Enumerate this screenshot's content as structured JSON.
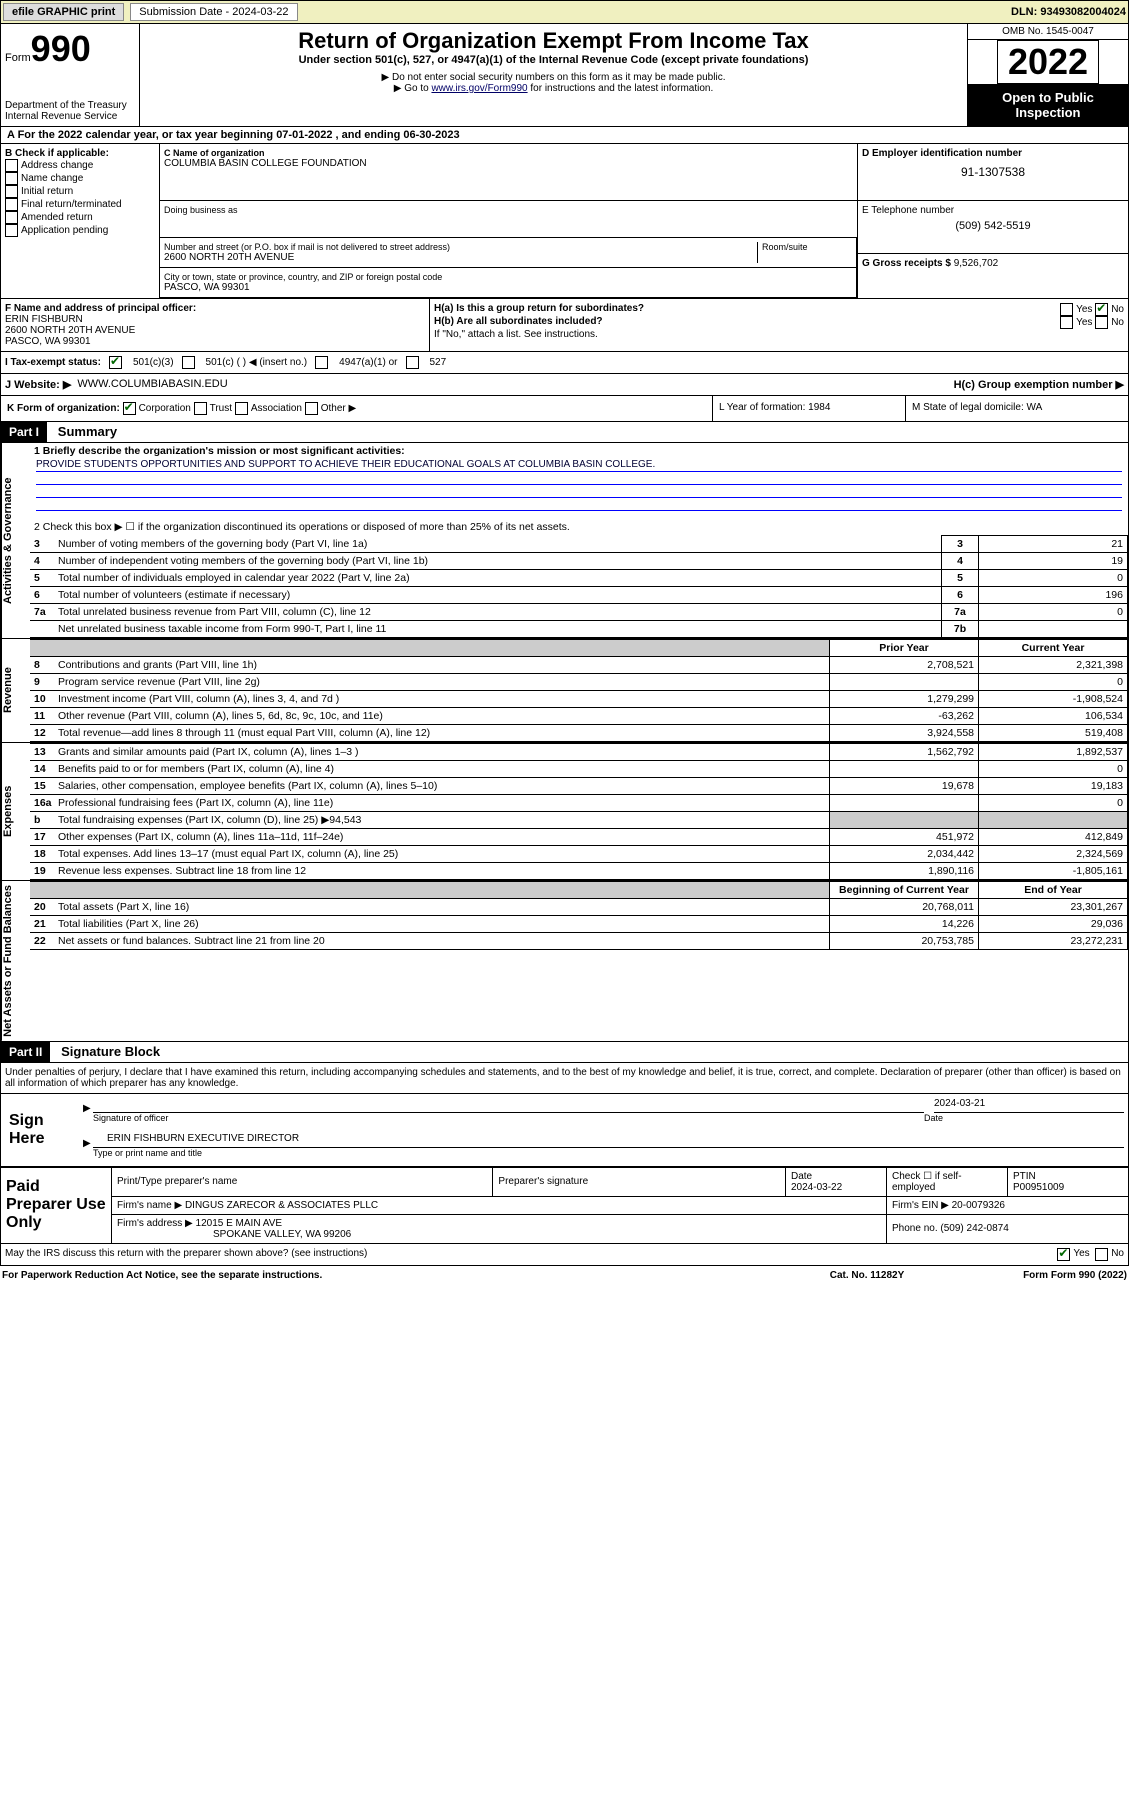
{
  "topbar": {
    "efile": "efile GRAPHIC print",
    "submission_label": "Submission Date - 2024-03-22",
    "dln": "DLN: 93493082004024"
  },
  "header": {
    "form_label": "Form",
    "form_no": "990",
    "dept": "Department of the Treasury",
    "irs": "Internal Revenue Service",
    "title": "Return of Organization Exempt From Income Tax",
    "subtitle": "Under section 501(c), 527, or 4947(a)(1) of the Internal Revenue Code (except private foundations)",
    "note1": "▶ Do not enter social security numbers on this form as it may be made public.",
    "note2_pre": "▶ Go to ",
    "note2_link": "www.irs.gov/Form990",
    "note2_post": " for instructions and the latest information.",
    "omb": "OMB No. 1545-0047",
    "year": "2022",
    "public": "Open to Public Inspection"
  },
  "rowA": "A For the 2022 calendar year, or tax year beginning 07-01-2022  , and ending 06-30-2023",
  "colB": {
    "hdr": "B Check if applicable:",
    "opts": [
      "Address change",
      "Name change",
      "Initial return",
      "Final return/terminated",
      "Amended return",
      "Application pending"
    ]
  },
  "colC": {
    "name_lbl": "C Name of organization",
    "name": "COLUMBIA BASIN COLLEGE FOUNDATION",
    "dba_lbl": "Doing business as",
    "street_lbl": "Number and street (or P.O. box if mail is not delivered to street address)",
    "room_lbl": "Room/suite",
    "street": "2600 NORTH 20TH AVENUE",
    "city_lbl": "City or town, state or province, country, and ZIP or foreign postal code",
    "city": "PASCO, WA  99301"
  },
  "colD": {
    "ein_lbl": "D Employer identification number",
    "ein": "91-1307538",
    "phone_lbl": "E Telephone number",
    "phone": "(509) 542-5519",
    "gross_lbl": "G Gross receipts $",
    "gross": "9,526,702"
  },
  "colF": {
    "lbl": "F Name and address of principal officer:",
    "name": "ERIN FISHBURN",
    "addr1": "2600 NORTH 20TH AVENUE",
    "addr2": "PASCO, WA  99301"
  },
  "colH": {
    "ha": "H(a)  Is this a group return for subordinates?",
    "ha_yes": "Yes",
    "ha_no": "No",
    "hb": "H(b)  Are all subordinates included?",
    "hb_note": "If \"No,\" attach a list. See instructions.",
    "hc": "H(c)  Group exemption number ▶"
  },
  "taxrow": {
    "lbl": "I   Tax-exempt status:",
    "o1": "501(c)(3)",
    "o2": "501(c) (  ) ◀ (insert no.)",
    "o3": "4947(a)(1) or",
    "o4": "527"
  },
  "web": {
    "lbl": "J   Website: ▶",
    "val": "WWW.COLUMBIABASIN.EDU"
  },
  "krow": {
    "k": "K Form of organization:",
    "k1": "Corporation",
    "k2": "Trust",
    "k3": "Association",
    "k4": "Other ▶",
    "l": "L Year of formation: 1984",
    "m": "M State of legal domicile: WA"
  },
  "part1": {
    "hdr": "Part I",
    "title": "Summary"
  },
  "sidelabels": {
    "ag": "Activities & Governance",
    "rev": "Revenue",
    "exp": "Expenses",
    "nab": "Net Assets or Fund Balances"
  },
  "mission": {
    "lbl": "1   Briefly describe the organization's mission or most significant activities:",
    "text": "PROVIDE STUDENTS OPPORTUNITIES AND SUPPORT TO ACHIEVE THEIR EDUCATIONAL GOALS AT COLUMBIA BASIN COLLEGE."
  },
  "line2": "2   Check this box ▶ ☐  if the organization discontinued its operations or disposed of more than 25% of its net assets.",
  "govlines": [
    {
      "n": "3",
      "t": "Number of voting members of the governing body (Part VI, line 1a)",
      "c": "3",
      "v": "21"
    },
    {
      "n": "4",
      "t": "Number of independent voting members of the governing body (Part VI, line 1b)",
      "c": "4",
      "v": "19"
    },
    {
      "n": "5",
      "t": "Total number of individuals employed in calendar year 2022 (Part V, line 2a)",
      "c": "5",
      "v": "0"
    },
    {
      "n": "6",
      "t": "Total number of volunteers (estimate if necessary)",
      "c": "6",
      "v": "196"
    },
    {
      "n": "7a",
      "t": "Total unrelated business revenue from Part VIII, column (C), line 12",
      "c": "7a",
      "v": "0"
    },
    {
      "n": "",
      "t": "Net unrelated business taxable income from Form 990-T, Part I, line 11",
      "c": "7b",
      "v": ""
    }
  ],
  "yearhdr": {
    "prior": "Prior Year",
    "current": "Current Year"
  },
  "revlines": [
    {
      "n": "8",
      "t": "Contributions and grants (Part VIII, line 1h)",
      "p": "2,708,521",
      "c": "2,321,398"
    },
    {
      "n": "9",
      "t": "Program service revenue (Part VIII, line 2g)",
      "p": "",
      "c": "0"
    },
    {
      "n": "10",
      "t": "Investment income (Part VIII, column (A), lines 3, 4, and 7d )",
      "p": "1,279,299",
      "c": "-1,908,524"
    },
    {
      "n": "11",
      "t": "Other revenue (Part VIII, column (A), lines 5, 6d, 8c, 9c, 10c, and 11e)",
      "p": "-63,262",
      "c": "106,534"
    },
    {
      "n": "12",
      "t": "Total revenue—add lines 8 through 11 (must equal Part VIII, column (A), line 12)",
      "p": "3,924,558",
      "c": "519,408"
    }
  ],
  "explines": [
    {
      "n": "13",
      "t": "Grants and similar amounts paid (Part IX, column (A), lines 1–3 )",
      "p": "1,562,792",
      "c": "1,892,537"
    },
    {
      "n": "14",
      "t": "Benefits paid to or for members (Part IX, column (A), line 4)",
      "p": "",
      "c": "0"
    },
    {
      "n": "15",
      "t": "Salaries, other compensation, employee benefits (Part IX, column (A), lines 5–10)",
      "p": "19,678",
      "c": "19,183"
    },
    {
      "n": "16a",
      "t": "Professional fundraising fees (Part IX, column (A), line 11e)",
      "p": "",
      "c": "0"
    },
    {
      "n": "b",
      "t": "Total fundraising expenses (Part IX, column (D), line 25) ▶94,543",
      "p": "GREY",
      "c": "GREY"
    },
    {
      "n": "17",
      "t": "Other expenses (Part IX, column (A), lines 11a–11d, 11f–24e)",
      "p": "451,972",
      "c": "412,849"
    },
    {
      "n": "18",
      "t": "Total expenses. Add lines 13–17 (must equal Part IX, column (A), line 25)",
      "p": "2,034,442",
      "c": "2,324,569"
    },
    {
      "n": "19",
      "t": "Revenue less expenses. Subtract line 18 from line 12",
      "p": "1,890,116",
      "c": "-1,805,161"
    }
  ],
  "nabhdr": {
    "b": "Beginning of Current Year",
    "e": "End of Year"
  },
  "nablines": [
    {
      "n": "20",
      "t": "Total assets (Part X, line 16)",
      "p": "20,768,011",
      "c": "23,301,267"
    },
    {
      "n": "21",
      "t": "Total liabilities (Part X, line 26)",
      "p": "14,226",
      "c": "29,036"
    },
    {
      "n": "22",
      "t": "Net assets or fund balances. Subtract line 21 from line 20",
      "p": "20,753,785",
      "c": "23,272,231"
    }
  ],
  "part2": {
    "hdr": "Part II",
    "title": "Signature Block"
  },
  "sigtext": "Under penalties of perjury, I declare that I have examined this return, including accompanying schedules and statements, and to the best of my knowledge and belief, it is true, correct, and complete. Declaration of preparer (other than officer) is based on all information of which preparer has any knowledge.",
  "sign": {
    "here": "Sign Here",
    "sig_lbl": "Signature of officer",
    "date_lbl": "Date",
    "date": "2024-03-21",
    "name": "ERIN FISHBURN  EXECUTIVE DIRECTOR",
    "name_lbl": "Type or print name and title"
  },
  "paid": {
    "hdr": "Paid Preparer Use Only",
    "pt_name_lbl": "Print/Type preparer's name",
    "sig_lbl": "Preparer's signature",
    "date_lbl": "Date",
    "date": "2024-03-22",
    "check_lbl": "Check ☐ if self-employed",
    "ptin_lbl": "PTIN",
    "ptin": "P00951009",
    "firm_name_lbl": "Firm's name    ▶",
    "firm_name": "DINGUS ZARECOR & ASSOCIATES PLLC",
    "firm_ein_lbl": "Firm's EIN ▶",
    "firm_ein": "20-0079326",
    "firm_addr_lbl": "Firm's address ▶",
    "firm_addr1": "12015 E MAIN AVE",
    "firm_addr2": "SPOKANE VALLEY, WA  99206",
    "phone_lbl": "Phone no.",
    "phone": "(509) 242-0874"
  },
  "may": {
    "q": "May the IRS discuss this return with the preparer shown above? (see instructions)",
    "yes": "Yes",
    "no": "No"
  },
  "footer": {
    "pra": "For Paperwork Reduction Act Notice, see the separate instructions.",
    "cat": "Cat. No. 11282Y",
    "form": "Form 990 (2022)"
  }
}
